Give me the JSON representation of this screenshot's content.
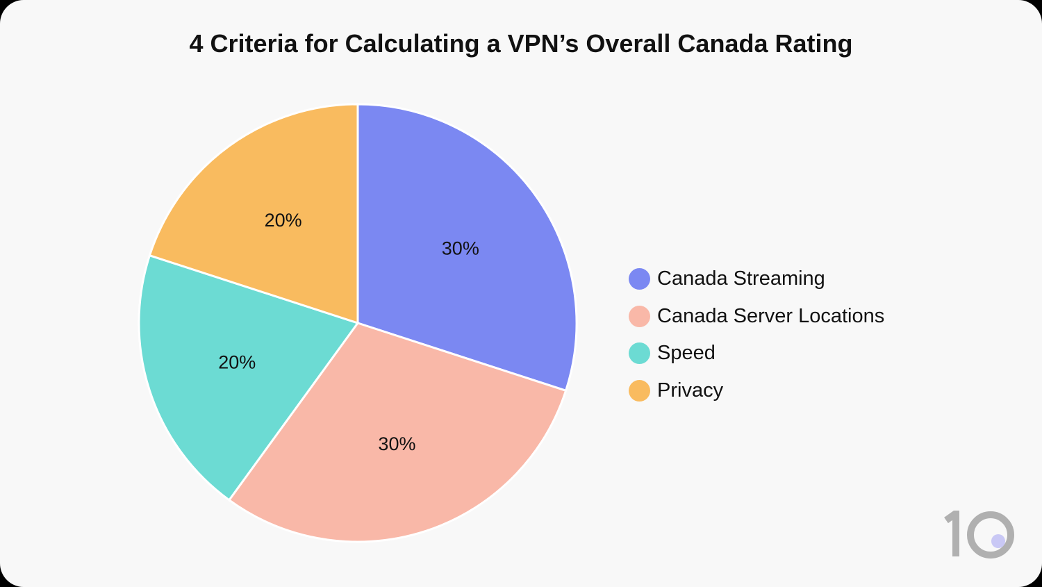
{
  "chart_data": {
    "type": "pie",
    "title": "4 Criteria for Calculating a VPN’s Overall Canada Rating",
    "categories": [
      "Canada Streaming",
      "Canada Server Locations",
      "Speed",
      "Privacy"
    ],
    "values": [
      30,
      30,
      20,
      20
    ],
    "labels": [
      "30%",
      "30%",
      "20%",
      "20%"
    ],
    "colors": [
      "#7b88f2",
      "#f9b8a8",
      "#6cdbd3",
      "#f9bb5f"
    ],
    "start_angle": "12 o'clock",
    "direction": "clockwise",
    "legend": "right"
  },
  "logo": {
    "text": "10",
    "digit_color": "#b0b0b0",
    "dot_color": "#c9c8f5"
  }
}
